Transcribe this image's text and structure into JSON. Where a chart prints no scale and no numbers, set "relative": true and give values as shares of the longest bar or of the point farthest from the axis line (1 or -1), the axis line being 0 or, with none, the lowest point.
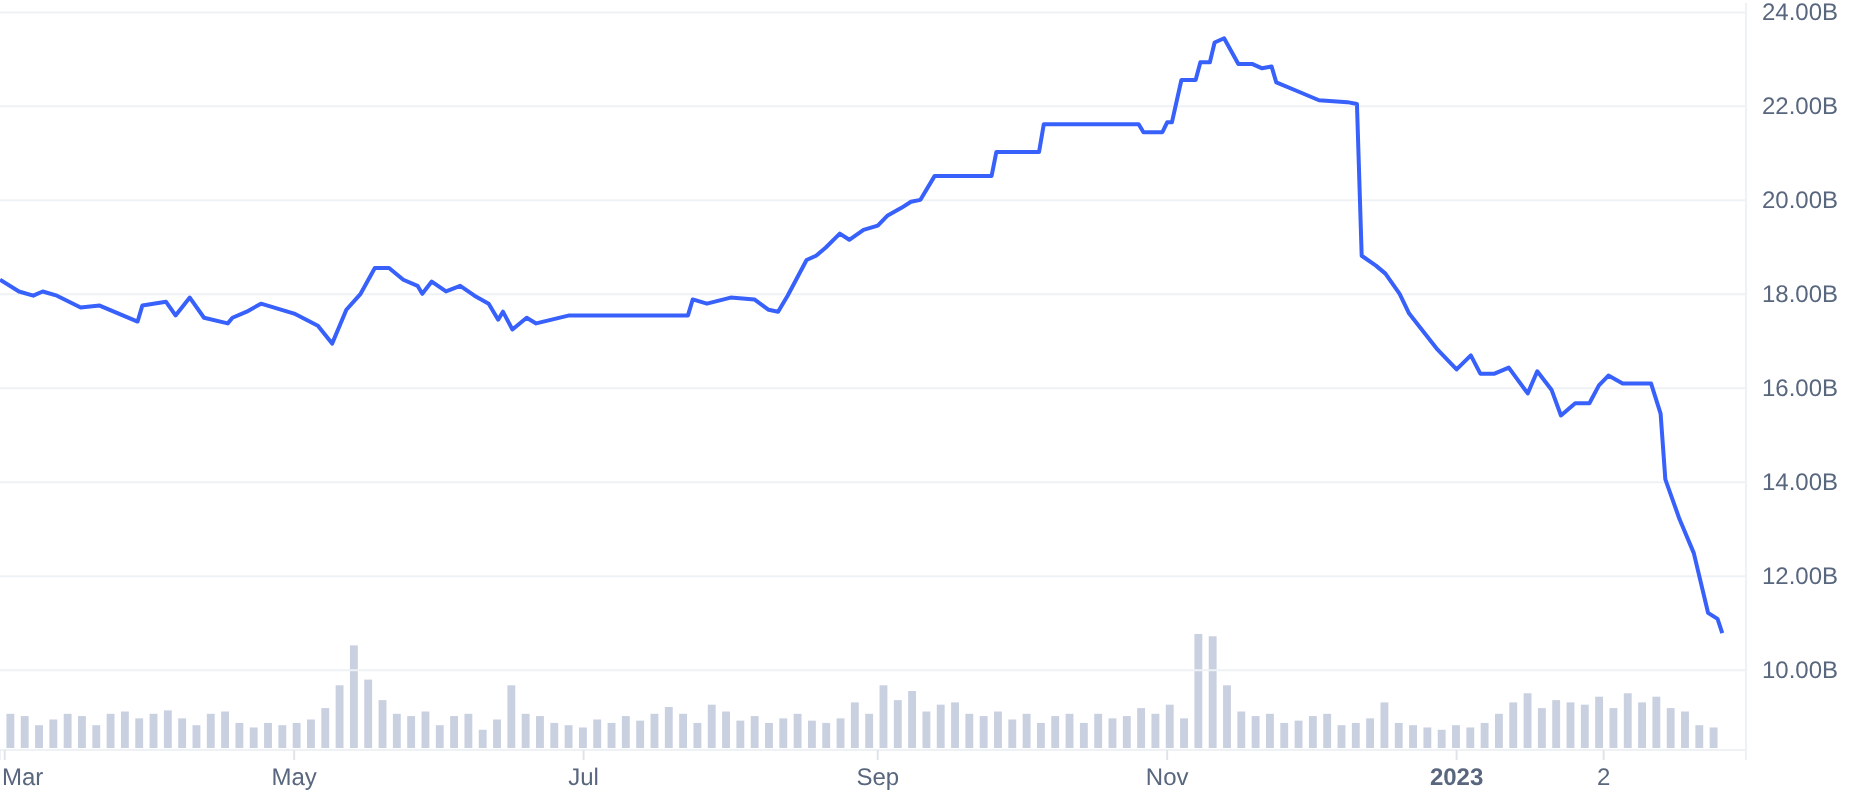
{
  "chart_data": [
    {
      "type": "line",
      "x": [
        "2022-02-28",
        "2022-03-04",
        "2022-03-07",
        "2022-03-09",
        "2022-03-12",
        "2022-03-17",
        "2022-03-21",
        "2022-03-25",
        "2022-03-29",
        "2022-03-30",
        "2022-04-04",
        "2022-04-06",
        "2022-04-09",
        "2022-04-12",
        "2022-04-17",
        "2022-04-18",
        "2022-04-21",
        "2022-04-24",
        "2022-05-01",
        "2022-05-06",
        "2022-05-09",
        "2022-05-12",
        "2022-05-15",
        "2022-05-18",
        "2022-05-21",
        "2022-05-24",
        "2022-05-27",
        "2022-05-28",
        "2022-05-30",
        "2022-06-02",
        "2022-06-05",
        "2022-06-08",
        "2022-06-11",
        "2022-06-13",
        "2022-06-14",
        "2022-06-16",
        "2022-06-19",
        "2022-06-21",
        "2022-06-28",
        "2022-07-04",
        "2022-07-13",
        "2022-07-23",
        "2022-07-24",
        "2022-07-27",
        "2022-08-01",
        "2022-08-06",
        "2022-08-09",
        "2022-08-11",
        "2022-08-13",
        "2022-08-17",
        "2022-08-19",
        "2022-08-21",
        "2022-08-24",
        "2022-08-26",
        "2022-08-29",
        "2022-09-01",
        "2022-09-03",
        "2022-09-06",
        "2022-09-08",
        "2022-09-10",
        "2022-09-13",
        "2022-09-25",
        "2022-09-26",
        "2022-10-05",
        "2022-10-06",
        "2022-10-26",
        "2022-10-27",
        "2022-10-31",
        "2022-11-01",
        "2022-11-02",
        "2022-11-04",
        "2022-11-07",
        "2022-11-08",
        "2022-11-10",
        "2022-11-11",
        "2022-11-13",
        "2022-11-16",
        "2022-11-19",
        "2022-11-21",
        "2022-11-23",
        "2022-11-24",
        "2022-11-29",
        "2022-12-03",
        "2022-12-09",
        "2022-12-11",
        "2022-12-12",
        "2022-12-15",
        "2022-12-17",
        "2022-12-20",
        "2022-12-22",
        "2022-12-28",
        "2023-01-01",
        "2023-01-04",
        "2023-01-06",
        "2023-01-09",
        "2023-01-12",
        "2023-01-16",
        "2023-01-18",
        "2023-01-21",
        "2023-01-23",
        "2023-01-26",
        "2023-01-29",
        "2023-01-31",
        "2023-02-02",
        "2023-02-05",
        "2023-02-11",
        "2023-02-13",
        "2023-02-14",
        "2023-02-17",
        "2023-02-20",
        "2023-02-23",
        "2023-02-25",
        "2023-02-26"
      ],
      "series": [
        {
          "color": "#3861fb",
          "values": [
            18.31,
            18.06,
            17.97,
            18.06,
            17.97,
            17.72,
            17.76,
            17.59,
            17.42,
            17.76,
            17.84,
            17.55,
            17.93,
            17.5,
            17.38,
            17.5,
            17.63,
            17.8,
            17.59,
            17.33,
            16.95,
            17.67,
            18.01,
            18.56,
            18.56,
            18.31,
            18.18,
            18.01,
            18.27,
            18.06,
            18.18,
            17.97,
            17.8,
            17.46,
            17.63,
            17.25,
            17.5,
            17.38,
            17.55,
            17.55,
            17.55,
            17.55,
            17.89,
            17.8,
            17.93,
            17.89,
            17.67,
            17.63,
            17.97,
            18.73,
            18.82,
            18.99,
            19.29,
            19.16,
            19.37,
            19.46,
            19.67,
            19.84,
            19.97,
            20.01,
            20.52,
            20.52,
            21.03,
            21.03,
            21.62,
            21.62,
            21.45,
            21.45,
            21.66,
            21.66,
            22.56,
            22.56,
            22.94,
            22.94,
            23.36,
            23.45,
            22.9,
            22.9,
            22.81,
            22.85,
            22.51,
            22.3,
            22.13,
            22.09,
            22.05,
            18.82,
            18.61,
            18.44,
            18.01,
            17.59,
            16.82,
            16.4,
            16.7,
            16.31,
            16.31,
            16.44,
            15.89,
            16.36,
            15.97,
            15.42,
            15.68,
            15.68,
            16.06,
            16.27,
            16.1,
            16.1,
            15.46,
            14.06,
            13.21,
            12.49,
            11.22,
            11.09,
            10.79
          ]
        }
      ],
      "xlim": [
        "2022-02-28",
        "2023-03-03"
      ],
      "xticks": [
        {
          "value": "2022-03-01",
          "label": "Mar"
        },
        {
          "value": "2022-05-01",
          "label": "May"
        },
        {
          "value": "2022-07-01",
          "label": "Jul"
        },
        {
          "value": "2022-09-01",
          "label": "Sep"
        },
        {
          "value": "2022-11-01",
          "label": "Nov"
        },
        {
          "value": "2023-01-01",
          "label": "2023"
        },
        {
          "value": "2023-02-01",
          "label": "2"
        }
      ],
      "ylim": [
        8.3,
        24.2
      ],
      "yticks": [
        {
          "value": 10,
          "label": "10.00B"
        },
        {
          "value": 12,
          "label": "12.00B"
        },
        {
          "value": 14,
          "label": "14.00B"
        },
        {
          "value": 16,
          "label": "16.00B"
        },
        {
          "value": 18,
          "label": "18.00B"
        },
        {
          "value": 20,
          "label": "20.00B"
        },
        {
          "value": 22,
          "label": "22.00B"
        },
        {
          "value": 24,
          "label": "24.00B"
        }
      ],
      "grid": "y"
    },
    {
      "type": "bar",
      "relative": true,
      "color": "#c9d0e0",
      "categories": [
        null,
        null,
        null,
        null,
        null,
        null,
        null,
        null,
        null,
        null,
        null,
        null,
        null,
        null,
        null,
        null,
        null,
        null,
        null,
        null,
        null,
        null,
        null,
        null,
        null,
        null,
        null,
        null,
        null,
        null,
        null,
        null,
        null,
        null,
        null,
        null,
        null,
        null,
        null,
        null,
        null,
        null,
        null,
        null,
        null,
        null,
        null,
        null,
        null,
        null,
        null,
        null,
        null,
        null,
        null,
        null,
        null,
        null,
        null,
        null,
        null,
        null,
        null,
        null,
        null,
        null,
        null,
        null,
        null,
        null,
        null,
        null,
        null,
        null,
        null,
        null,
        null,
        null,
        null,
        null,
        null,
        null,
        null,
        null,
        null,
        null,
        null,
        null,
        null,
        null,
        null,
        null,
        null,
        null,
        null,
        null,
        null,
        null,
        null,
        null,
        null,
        null,
        null,
        null,
        null,
        null,
        null,
        null,
        null,
        null,
        null,
        null,
        null,
        null,
        null,
        null,
        null,
        null,
        null,
        null
      ],
      "values": [
        0.3,
        0.28,
        0.2,
        0.25,
        0.3,
        0.28,
        0.2,
        0.3,
        0.32,
        0.26,
        0.3,
        0.33,
        0.26,
        0.2,
        0.3,
        0.32,
        0.22,
        0.18,
        0.22,
        0.2,
        0.22,
        0.25,
        0.35,
        0.55,
        0.9,
        0.6,
        0.42,
        0.3,
        0.28,
        0.32,
        0.2,
        0.28,
        0.3,
        0.16,
        0.25,
        0.55,
        0.3,
        0.28,
        0.22,
        0.2,
        0.18,
        0.25,
        0.22,
        0.28,
        0.24,
        0.3,
        0.36,
        0.3,
        0.22,
        0.38,
        0.32,
        0.24,
        0.28,
        0.22,
        0.26,
        0.3,
        0.24,
        0.22,
        0.26,
        0.4,
        0.3,
        0.55,
        0.42,
        0.5,
        0.32,
        0.38,
        0.4,
        0.3,
        0.28,
        0.32,
        0.25,
        0.3,
        0.22,
        0.28,
        0.3,
        0.22,
        0.3,
        0.26,
        0.28,
        0.35,
        0.3,
        0.38,
        0.26,
        1.0,
        0.98,
        0.55,
        0.32,
        0.28,
        0.3,
        0.22,
        0.24,
        0.28,
        0.3,
        0.2,
        0.22,
        0.26,
        0.4,
        0.22,
        0.2,
        0.18,
        0.16,
        0.2,
        0.18,
        0.22,
        0.3,
        0.4,
        0.48,
        0.35,
        0.42,
        0.4,
        0.38,
        0.45,
        0.35,
        0.48,
        0.4,
        0.45,
        0.35,
        0.32,
        0.2,
        0.18
      ]
    }
  ]
}
